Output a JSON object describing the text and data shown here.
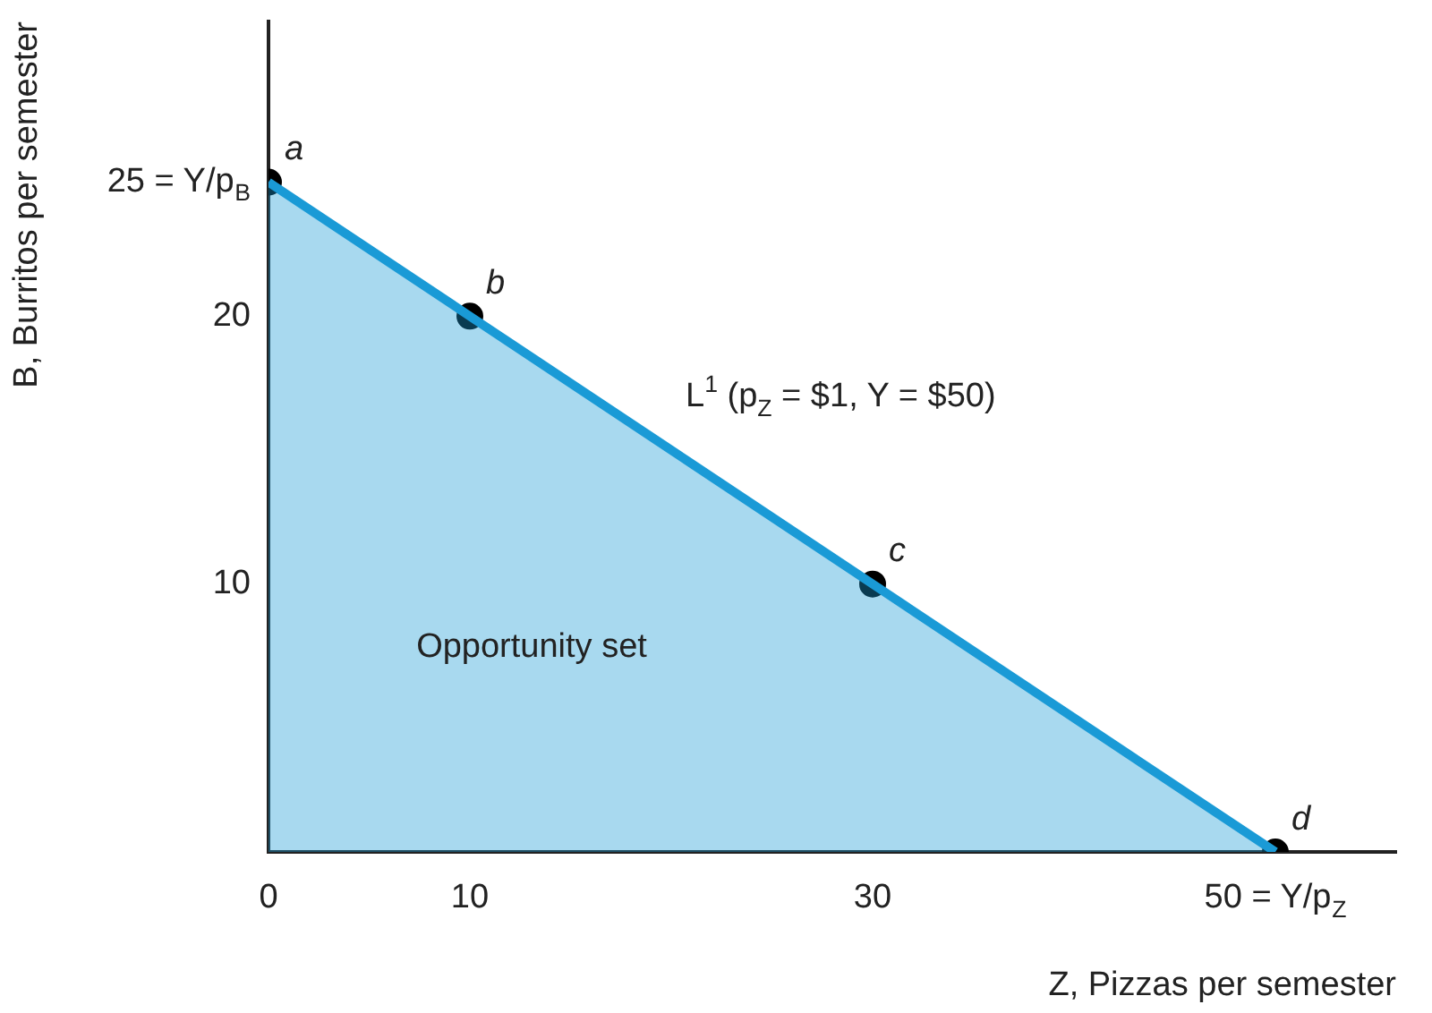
{
  "chart_data": {
    "type": "area",
    "xlabel": "Z, Pizzas per semester",
    "ylabel": "B, Burritos per semester",
    "xlim": [
      0,
      56
    ],
    "ylim": [
      0,
      31
    ],
    "xticks": [
      0,
      10,
      30,
      {
        "value": 50,
        "label": "50 = Y/p$_{Z}$"
      }
    ],
    "yticks": [
      10,
      20,
      {
        "value": 25,
        "label": "25 = Y/p$_{B}$"
      }
    ],
    "grid": false,
    "legend": false,
    "series": [
      {
        "color": "#1a9ad6",
        "x": [
          0,
          10,
          30,
          50
        ],
        "values": [
          25,
          20,
          10,
          0
        ],
        "marker": "none"
      },
      {
        "type": "scatter",
        "color": "#000000",
        "x": [
          0,
          10,
          30,
          50
        ],
        "values": [
          25,
          20,
          10,
          0
        ],
        "marker": "circle"
      }
    ],
    "annotations": [
      {
        "text": "a",
        "x": 0,
        "y": 25
      },
      {
        "text": "b",
        "x": 10,
        "y": 20
      },
      {
        "text": "c",
        "x": 30,
        "y": 10
      },
      {
        "text": "d",
        "x": 50,
        "y": 0
      },
      "L$^{1}$ (p$_{Z}$ = $1, Y = $50)",
      "Opportunity set"
    ]
  }
}
